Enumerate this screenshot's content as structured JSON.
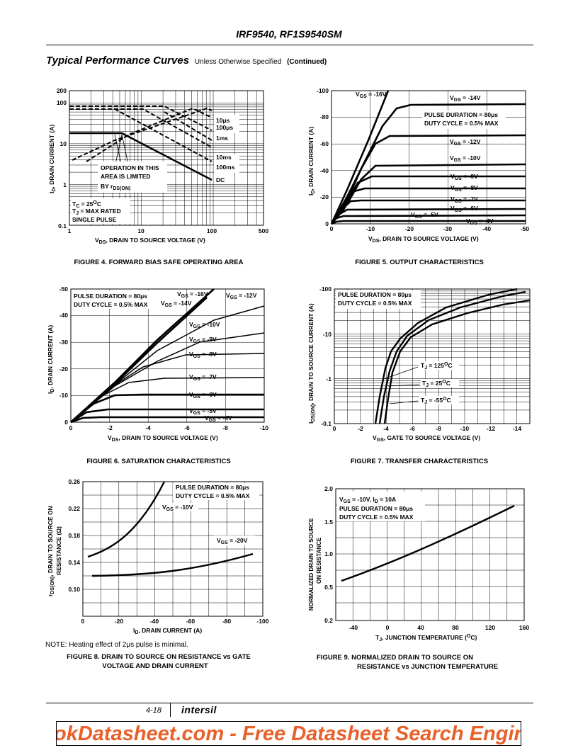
{
  "header": {
    "title": "IRF9540, RF1S9540SM"
  },
  "section": {
    "title": "Typical Performance Curves",
    "subtitle": "Unless Otherwise Specified",
    "continued": "(Continued)"
  },
  "figures": {
    "fig4": {
      "caption": "FIGURE 4.  FORWARD BIAS SAFE OPERATING AREA",
      "ylabel": "I_D, DRAIN CURRENT (A)",
      "xlabel": "V_DS, DRAIN TO SOURCE VOLTAGE (V)",
      "y_ticks": [
        "200",
        "100",
        "10",
        "1",
        "0.1"
      ],
      "x_ticks": [
        "1",
        "10",
        "100",
        "500"
      ],
      "annotations": {
        "op_line1": "OPERATION IN THIS",
        "op_line2": "AREA IS LIMITED",
        "op_line3": "BY r",
        "op_sub": "DS(ON)",
        "tc": "T",
        "tc_sub": "C",
        "tc_rest": " = 25",
        "tc_sup": "O",
        "tc_unit": "C",
        "tj": "T",
        "tj_sub": "J",
        "tj_rest": " = MAX RATED",
        "single": "SINGLE PULSE",
        "p10us": "10μs",
        "p100us": "100μs",
        "p1ms": "1ms",
        "p10ms": "10ms",
        "p100ms": "100ms",
        "dc": "DC"
      }
    },
    "fig5": {
      "caption": "FIGURE 5.  OUTPUT CHARACTERISTICS",
      "ylabel": "I_D, DRAIN CURRENT (A)",
      "xlabel": "V_DS, DRAIN TO SOURCE VOLTAGE (V)",
      "y_ticks": [
        "-100",
        "-80",
        "-60",
        "-40",
        "-20",
        "0"
      ],
      "x_ticks": [
        "0",
        "-10",
        "-20",
        "-30",
        "-40",
        "-50"
      ],
      "pulse1": "PULSE DURATION = 80μs",
      "pulse2": "DUTY CYCLE = 0.5% MAX",
      "labels": [
        "-16V",
        "-14V",
        "-12V",
        "-10V",
        "-9V",
        "-8V",
        "-7V",
        "-6V",
        "-5V",
        "-4V"
      ]
    },
    "fig6": {
      "caption": "FIGURE 6.  SATURATION CHARACTERISTICS",
      "ylabel": "I_D, DRAIN CURRENT (A)",
      "xlabel": "V_DS, DRAIN TO SOURCE VOLTAGE (V)",
      "y_ticks": [
        "-50",
        "-40",
        "-30",
        "-20",
        "-10",
        "0"
      ],
      "x_ticks": [
        "0",
        "-2",
        "-4",
        "-6",
        "-8",
        "-10"
      ],
      "pulse1": "PULSE DURATION = 80μs",
      "pulse2": "DUTY CYCLE = 0.5% MAX",
      "labels": [
        "-16V",
        "-12V",
        "-14V",
        "-10V",
        "-9V",
        "-8V",
        "-7V",
        "-6V",
        "-5V",
        "-4V"
      ]
    },
    "fig7": {
      "caption": "FIGURE 7.  TRANSFER CHARACTERISTICS",
      "ylabel": "I_DS(ON), DRAIN TO SOURCE CURRENT (A)",
      "xlabel": "V_GS, GATE TO SOURCE VOLTAGE (V)",
      "y_ticks": [
        "-100",
        "-10",
        "-1",
        "-0.1"
      ],
      "x_ticks": [
        "0",
        "-2",
        "-4",
        "-6",
        "-8",
        "-10",
        "-12",
        "-14"
      ],
      "pulse1": "PULSE DURATION = 80μs",
      "pulse2": "DUTY CYCLE = 0.5% MAX",
      "labels": [
        "125",
        "25",
        "-55"
      ]
    },
    "fig8": {
      "caption1": "FIGURE 8.  DRAIN TO SOURCE ON RESISTANCE vs GATE",
      "caption2": "VOLTAGE AND DRAIN CURRENT",
      "ylabel1": "r_DS(ON), DRAIN TO SOURCE ON",
      "ylabel2": "RESISTANCE (Ω)",
      "xlabel": "I_D, DRAIN CURRENT (A)",
      "y_ticks": [
        "0.26",
        "0.22",
        "0.18",
        "0.14",
        "0.10"
      ],
      "x_ticks": [
        "0",
        "-20",
        "-40",
        "-60",
        "-80",
        "-100"
      ],
      "pulse1": "PULSE DURATION = 80μs",
      "pulse2": "DUTY CYCLE = 0.5% MAX",
      "labels": [
        "-10V",
        "-20V"
      ]
    },
    "fig9": {
      "caption1": "FIGURE 9.  NORMALIZED DRAIN TO SOURCE ON",
      "caption2": "RESISTANCE vs JUNCTION TEMPERATURE",
      "ylabel1": "NORMALIZED DRAIN TO SOURCE",
      "ylabel2": "ON RESISTANCE",
      "xlabel": "T_J, JUNCTION TEMPERATURE (OC)",
      "y_ticks": [
        "2.0",
        "1.5",
        "1.0",
        "0.5",
        "0.2"
      ],
      "x_ticks": [
        "-40",
        "0",
        "40",
        "80",
        "120",
        "160"
      ],
      "cond1": "V_GS = -10V, I_D = 10A",
      "pulse1": "PULSE DURATION = 80μs",
      "pulse2": "DUTY CYCLE = 0.5% MAX"
    }
  },
  "note": "NOTE:  Heating effect of 2μs pulse is minimal.",
  "footer": {
    "page": "4-18",
    "brand": "intersil"
  },
  "banner": "okDatasheet.com - Free Datasheet Search Engine"
}
